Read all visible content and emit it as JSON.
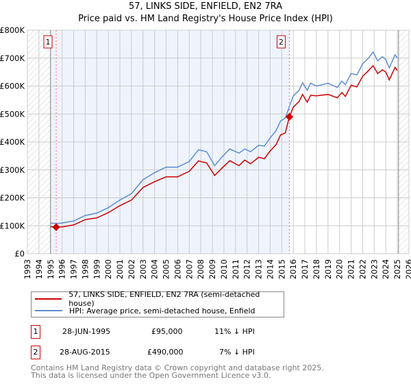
{
  "chart_data": {
    "type": "line",
    "title": "57, LINKS SIDE, ENFIELD, EN2 7RA",
    "subtitle": "Price paid vs. HM Land Registry's House Price Index (HPI)",
    "xlim": [
      1993,
      2026
    ],
    "ylim": [
      0,
      800000
    ],
    "x_ticks": [
      "1993",
      "1994",
      "1995",
      "1996",
      "1997",
      "1998",
      "1999",
      "2000",
      "2001",
      "2002",
      "2003",
      "2004",
      "2005",
      "2006",
      "2007",
      "2008",
      "2009",
      "2010",
      "2011",
      "2012",
      "2013",
      "2014",
      "2015",
      "2016",
      "2017",
      "2018",
      "2019",
      "2020",
      "2021",
      "2022",
      "2023",
      "2024",
      "2025",
      "2026"
    ],
    "y_ticks": [
      {
        "v": 0,
        "label": "£0"
      },
      {
        "v": 100000,
        "label": "£100K"
      },
      {
        "v": 200000,
        "label": "£200K"
      },
      {
        "v": 300000,
        "label": "£300K"
      },
      {
        "v": 400000,
        "label": "£400K"
      },
      {
        "v": 500000,
        "label": "£500K"
      },
      {
        "v": 600000,
        "label": "£600K"
      },
      {
        "v": 700000,
        "label": "£700K"
      },
      {
        "v": 800000,
        "label": "£800K"
      }
    ],
    "grid": true,
    "series": [
      {
        "name": "57, LINKS SIDE, ENFIELD, EN2 7RA (semi-detached house)",
        "color": "#cc0000",
        "x": [
          1995,
          1995.5,
          1996,
          1997,
          1998,
          1999,
          2000,
          2001,
          2002,
          2003,
          2004,
          2005,
          2006,
          2007,
          2007.8,
          2008.5,
          2009.2,
          2009.8,
          2010.5,
          2011.3,
          2011.8,
          2012.3,
          2013,
          2013.5,
          2014,
          2014.5,
          2014.9,
          2015.3,
          2015.66,
          2016,
          2016.5,
          2016.8,
          2017.2,
          2017.5,
          2018,
          2019,
          2019.8,
          2020.2,
          2020.5,
          2021,
          2021.5,
          2022,
          2022.5,
          2022.9,
          2023.3,
          2023.7,
          2024,
          2024.3,
          2024.8,
          2025
        ],
        "y": [
          97000,
          95000,
          96000,
          103000,
          122000,
          128000,
          147000,
          172000,
          192000,
          237000,
          258000,
          275000,
          275000,
          295000,
          332000,
          325000,
          280000,
          305000,
          333000,
          315000,
          335000,
          322000,
          345000,
          340000,
          368000,
          390000,
          425000,
          432000,
          490000,
          525000,
          545000,
          570000,
          542000,
          567000,
          565000,
          570000,
          558000,
          577000,
          563000,
          603000,
          597000,
          635000,
          655000,
          673000,
          645000,
          658000,
          650000,
          622000,
          667000,
          655000
        ]
      },
      {
        "name": "HPI: Average price, semi-detached house, Enfield",
        "color": "#5b8dd0",
        "x": [
          1995,
          1995.5,
          1996,
          1997,
          1998,
          1999,
          2000,
          2001,
          2002,
          2003,
          2004,
          2005,
          2006,
          2007,
          2007.8,
          2008.5,
          2009.2,
          2009.8,
          2010.5,
          2011.3,
          2011.8,
          2012.3,
          2013,
          2013.5,
          2014,
          2014.5,
          2014.9,
          2015.3,
          2015.66,
          2016,
          2016.5,
          2016.8,
          2017.2,
          2017.5,
          2018,
          2019,
          2019.8,
          2020.2,
          2020.5,
          2021,
          2021.5,
          2022,
          2022.5,
          2022.9,
          2023.3,
          2023.7,
          2024,
          2024.3,
          2024.8,
          2025
        ],
        "y": [
          110000,
          108000,
          110000,
          117000,
          137000,
          145000,
          165000,
          192000,
          215000,
          265000,
          290000,
          310000,
          310000,
          330000,
          372000,
          365000,
          315000,
          345000,
          375000,
          360000,
          375000,
          365000,
          388000,
          385000,
          415000,
          440000,
          475000,
          485000,
          527000,
          565000,
          585000,
          612000,
          585000,
          610000,
          600000,
          610000,
          595000,
          618000,
          605000,
          645000,
          640000,
          680000,
          700000,
          722000,
          690000,
          705000,
          695000,
          665000,
          712000,
          700000
        ]
      }
    ],
    "sales": [
      {
        "id": "1",
        "x": 1995.49,
        "y": 95000
      },
      {
        "id": "2",
        "x": 2015.66,
        "y": 490000
      }
    ],
    "legend_placement": "below"
  },
  "legend": [
    {
      "label": "57, LINKS SIDE, ENFIELD, EN2 7RA (semi-detached house)"
    },
    {
      "label": "HPI: Average price, semi-detached house, Enfield"
    }
  ],
  "transactions": [
    {
      "num": "1",
      "date": "28-JUN-1995",
      "price": "£95,000",
      "hpi": "11% ↓ HPI"
    },
    {
      "num": "2",
      "date": "28-AUG-2015",
      "price": "£490,000",
      "hpi": "7% ↓ HPI"
    }
  ],
  "footer": [
    "Contains HM Land Registry data © Crown copyright and database right 2025.",
    "This data is licensed under the Open Government Licence v3.0."
  ],
  "colors": {
    "red": "#cc0000",
    "blue": "#5b8dd0",
    "shade": "#eef3fc"
  }
}
